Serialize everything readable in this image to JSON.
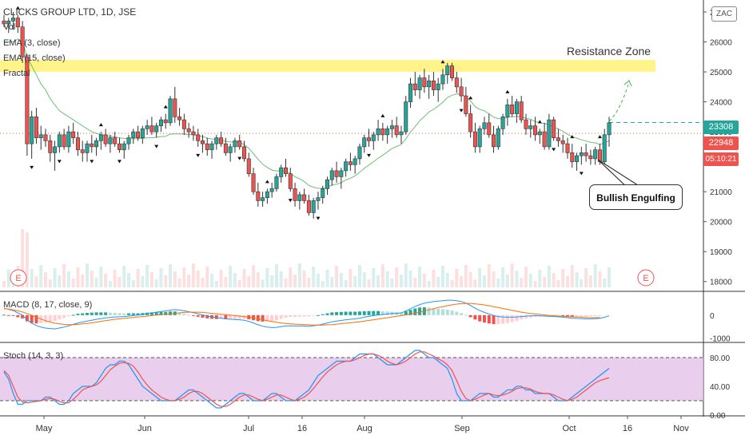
{
  "chart_data": {
    "type": "candlestick",
    "title": "CLICKS GROUP LTD, 1D, JSE",
    "timeframe": "1D",
    "exchange": "JSE",
    "currency_badge": "ZAC",
    "indicators": [
      "Vol",
      "EMA (3, close)",
      "EMA (15, close)",
      "Fractal"
    ],
    "price_axis": [
      27000,
      26000,
      25000,
      24000,
      23000,
      22000,
      21000,
      20000,
      19000,
      18000
    ],
    "price_labels": [
      "27000",
      "26000",
      "25000",
      "24000",
      "23000",
      "22000",
      "21000",
      "20000",
      "19000",
      "18000"
    ],
    "ylim": [
      17700,
      27400
    ],
    "last_price": "23308",
    "prev_close": "22948",
    "countdown": "05:10:21",
    "x_labels": [
      "May",
      "Jun",
      "Jul",
      "16",
      "Aug",
      "Sep",
      "Oct",
      "16",
      "Nov"
    ],
    "resistance_zone": {
      "label": "Resistance Zone",
      "from": 25000,
      "to": 25400
    },
    "annotation": "Bullish Engulfing",
    "earnings_marker": "E",
    "candles": [
      [
        26700,
        26900,
        26500,
        26600
      ],
      [
        26600,
        26800,
        26300,
        26700
      ],
      [
        26700,
        27000,
        26400,
        26800
      ],
      [
        26800,
        26900,
        26300,
        26500
      ],
      [
        26500,
        26700,
        25300,
        25500
      ],
      [
        25500,
        25600,
        22200,
        22600
      ],
      [
        22600,
        23700,
        22100,
        23500
      ],
      [
        23500,
        23800,
        22600,
        22800
      ],
      [
        22800,
        23200,
        22400,
        22900
      ],
      [
        22900,
        23100,
        22500,
        22700
      ],
      [
        22700,
        22900,
        22000,
        22300
      ],
      [
        22300,
        22700,
        21700,
        22500
      ],
      [
        22500,
        23000,
        22300,
        22900
      ],
      [
        22900,
        23100,
        22400,
        22500
      ],
      [
        22500,
        23200,
        22300,
        23000
      ],
      [
        23000,
        23300,
        22600,
        22800
      ],
      [
        22800,
        23000,
        22200,
        22400
      ],
      [
        22400,
        22700,
        22000,
        22300
      ],
      [
        22300,
        22700,
        22000,
        22600
      ],
      [
        22600,
        22900,
        22300,
        22500
      ],
      [
        22500,
        22800,
        22200,
        22700
      ],
      [
        22700,
        23000,
        22400,
        22900
      ],
      [
        22900,
        23100,
        22500,
        22600
      ],
      [
        22600,
        22900,
        22300,
        22800
      ],
      [
        22800,
        23000,
        22500,
        22600
      ],
      [
        22600,
        22800,
        22300,
        22400
      ],
      [
        22400,
        22700,
        22100,
        22600
      ],
      [
        22600,
        22900,
        22400,
        22800
      ],
      [
        22800,
        23100,
        22600,
        23000
      ],
      [
        23000,
        23200,
        22700,
        22800
      ],
      [
        22800,
        23200,
        22600,
        23100
      ],
      [
        23100,
        23400,
        22900,
        23200
      ],
      [
        23200,
        23500,
        22900,
        23000
      ],
      [
        23000,
        23300,
        22800,
        23200
      ],
      [
        23200,
        23500,
        23000,
        23400
      ],
      [
        23400,
        23600,
        23100,
        23300
      ],
      [
        23300,
        24200,
        23200,
        24100
      ],
      [
        24100,
        24500,
        23300,
        23500
      ],
      [
        23500,
        23800,
        23200,
        23400
      ],
      [
        23400,
        23600,
        22900,
        23100
      ],
      [
        23100,
        23300,
        22800,
        23000
      ],
      [
        23000,
        23200,
        22700,
        22900
      ],
      [
        22900,
        23100,
        22500,
        22700
      ],
      [
        22700,
        22900,
        22300,
        22600
      ],
      [
        22600,
        22800,
        22200,
        22400
      ],
      [
        22400,
        22700,
        22100,
        22600
      ],
      [
        22600,
        22900,
        22400,
        22800
      ],
      [
        22800,
        23000,
        22500,
        22600
      ],
      [
        22600,
        22800,
        22200,
        22300
      ],
      [
        22300,
        22600,
        22000,
        22500
      ],
      [
        22500,
        22800,
        22300,
        22700
      ],
      [
        22700,
        22900,
        22400,
        22500
      ],
      [
        22500,
        22700,
        22000,
        22100
      ],
      [
        22100,
        22300,
        21500,
        21600
      ],
      [
        21600,
        21800,
        20900,
        21000
      ],
      [
        21000,
        21300,
        20500,
        20700
      ],
      [
        20700,
        21000,
        20500,
        20800
      ],
      [
        20800,
        21100,
        20600,
        21000
      ],
      [
        21000,
        21300,
        20800,
        21100
      ],
      [
        21100,
        21600,
        21000,
        21500
      ],
      [
        21500,
        21900,
        21300,
        21800
      ],
      [
        21800,
        22100,
        21500,
        21600
      ],
      [
        21600,
        21800,
        21000,
        21100
      ],
      [
        21100,
        21300,
        20500,
        20700
      ],
      [
        20700,
        21000,
        20400,
        20900
      ],
      [
        20900,
        21100,
        20600,
        20700
      ],
      [
        20700,
        20900,
        20200,
        20300
      ],
      [
        20300,
        20800,
        20100,
        20700
      ],
      [
        20700,
        21000,
        20400,
        20800
      ],
      [
        20800,
        21200,
        20600,
        21100
      ],
      [
        21100,
        21500,
        20900,
        21400
      ],
      [
        21400,
        21800,
        21200,
        21700
      ],
      [
        21700,
        22000,
        21300,
        21500
      ],
      [
        21500,
        21800,
        21100,
        21700
      ],
      [
        21700,
        22100,
        21500,
        22000
      ],
      [
        22000,
        22300,
        21700,
        21900
      ],
      [
        21900,
        22200,
        21600,
        22100
      ],
      [
        22100,
        22600,
        21900,
        22500
      ],
      [
        22500,
        22900,
        22300,
        22800
      ],
      [
        22800,
        23100,
        22500,
        22700
      ],
      [
        22700,
        23000,
        22400,
        22900
      ],
      [
        22900,
        23400,
        22700,
        23100
      ],
      [
        23100,
        23300,
        22700,
        22900
      ],
      [
        22900,
        23200,
        22600,
        23100
      ],
      [
        23100,
        23400,
        22800,
        23200
      ],
      [
        23200,
        23500,
        22800,
        22900
      ],
      [
        22900,
        23200,
        22600,
        23000
      ],
      [
        23000,
        24200,
        22900,
        24000
      ],
      [
        24000,
        24800,
        23800,
        24600
      ],
      [
        24600,
        25000,
        24200,
        24400
      ],
      [
        24400,
        24900,
        24100,
        24800
      ],
      [
        24800,
        25100,
        24300,
        24500
      ],
      [
        24500,
        24900,
        24100,
        24700
      ],
      [
        24700,
        25000,
        24200,
        24400
      ],
      [
        24400,
        24800,
        24000,
        24600
      ],
      [
        24600,
        25100,
        24400,
        24900
      ],
      [
        24900,
        25300,
        24600,
        25200
      ],
      [
        25200,
        25300,
        24700,
        24800
      ],
      [
        24800,
        25000,
        24300,
        24500
      ],
      [
        24500,
        24800,
        24000,
        24200
      ],
      [
        24200,
        24500,
        23500,
        23600
      ],
      [
        23600,
        23900,
        22800,
        23000
      ],
      [
        23000,
        23300,
        22300,
        22500
      ],
      [
        22500,
        23200,
        22300,
        23100
      ],
      [
        23100,
        23500,
        22900,
        23300
      ],
      [
        23300,
        23600,
        22800,
        22900
      ],
      [
        22900,
        23200,
        22300,
        22500
      ],
      [
        22500,
        23200,
        22400,
        23100
      ],
      [
        23100,
        23600,
        22900,
        23500
      ],
      [
        23500,
        24100,
        23200,
        23900
      ],
      [
        23900,
        24200,
        23500,
        23600
      ],
      [
        23600,
        24100,
        23300,
        24000
      ],
      [
        24000,
        24200,
        23300,
        23400
      ],
      [
        23400,
        23600,
        22900,
        23100
      ],
      [
        23100,
        23400,
        22800,
        23200
      ],
      [
        23200,
        23500,
        22700,
        22900
      ],
      [
        22900,
        23100,
        22600,
        23000
      ],
      [
        23000,
        23300,
        22400,
        22500
      ],
      [
        22500,
        23600,
        22400,
        23400
      ],
      [
        23400,
        23500,
        22700,
        22800
      ],
      [
        22800,
        23100,
        22500,
        22700
      ],
      [
        22700,
        22900,
        22300,
        22600
      ],
      [
        22600,
        22800,
        22100,
        22300
      ],
      [
        22300,
        22600,
        21800,
        22000
      ],
      [
        22000,
        22300,
        21700,
        22200
      ],
      [
        22200,
        22500,
        21900,
        22300
      ],
      [
        22300,
        22600,
        22000,
        22200
      ],
      [
        22200,
        22400,
        21900,
        22100
      ],
      [
        22100,
        22500,
        21900,
        22400
      ],
      [
        22400,
        22600,
        21900,
        22000
      ],
      [
        22000,
        23100,
        21900,
        22900
      ],
      [
        22900,
        23500,
        22500,
        23300
      ]
    ],
    "ema15": [
      26000,
      26000,
      26000,
      26100,
      26000,
      25500,
      25200,
      24900,
      24600,
      24400,
      24100,
      23900,
      23700,
      23600,
      23500,
      23400,
      23300,
      23200,
      23100,
      23000,
      22950,
      22900,
      22880,
      22850,
      22830,
      22800,
      22780,
      22770,
      22770,
      22770,
      22780,
      22800,
      22800,
      22820,
      22840,
      22850,
      22920,
      22930,
      22930,
      22920,
      22910,
      22900,
      22870,
      22840,
      22790,
      22760,
      22750,
      22730,
      22680,
      22660,
      22660,
      22640,
      22570,
      22450,
      22270,
      22080,
      21920,
      21810,
      21720,
      21690,
      21700,
      21680,
      21610,
      21500,
      21430,
      21340,
      21210,
      21150,
      21110,
      21110,
      21150,
      21220,
      21250,
      21300,
      21390,
      21450,
      21530,
      21650,
      21780,
      21890,
      22000,
      22120,
      22220,
      22330,
      22440,
      22510,
      22580,
      22760,
      22990,
      23170,
      23370,
      23510,
      23660,
      23750,
      23860,
      23990,
      24140,
      24220,
      24260,
      24250,
      24170,
      24030,
      23840,
      23750,
      23700,
      23600,
      23490,
      23440,
      23430,
      23490,
      23500,
      23520,
      23500,
      23450,
      23420,
      23340,
      23300,
      23280,
      23230,
      23160,
      23090,
      23020,
      22920,
      22830,
      22790,
      22730,
      22690,
      22650,
      22630,
      22580,
      22620,
      22710
    ],
    "macd": [
      300,
      250,
      200,
      100,
      0,
      -200,
      -350,
      -450,
      -520,
      -560,
      -580,
      -600,
      -560,
      -520,
      -460,
      -400,
      -340,
      -300,
      -260,
      -220,
      -180,
      -150,
      -120,
      -100,
      -80,
      -70,
      -60,
      -40,
      -20,
      0,
      30,
      70,
      100,
      130,
      160,
      180,
      220,
      240,
      220,
      190,
      150,
      110,
      60,
      10,
      -40,
      -80,
      -110,
      -130,
      -160,
      -180,
      -190,
      -200,
      -220,
      -270,
      -340,
      -420,
      -480,
      -520,
      -540,
      -530,
      -500,
      -470,
      -460,
      -470,
      -470,
      -470,
      -480,
      -460,
      -430,
      -390,
      -340,
      -290,
      -260,
      -230,
      -200,
      -180,
      -160,
      -130,
      -90,
      -50,
      -20,
      10,
      30,
      50,
      70,
      80,
      100,
      180,
      280,
      380,
      460,
      520,
      560,
      590,
      610,
      630,
      650,
      650,
      630,
      590,
      520,
      420,
      300,
      200,
      120,
      50,
      -20,
      -60,
      -80,
      -90,
      -90,
      -80,
      -60,
      -40,
      -30,
      -20,
      -30,
      -40,
      -50,
      -60,
      -70,
      -90,
      -110,
      -130,
      -140,
      -150,
      -160,
      -160,
      -150,
      -140,
      -90,
      -30
    ],
    "macd_signal": [
      280,
      260,
      230,
      190,
      140,
      70,
      -10,
      -90,
      -170,
      -240,
      -300,
      -350,
      -380,
      -400,
      -410,
      -410,
      -400,
      -380,
      -360,
      -330,
      -300,
      -270,
      -240,
      -210,
      -180,
      -160,
      -140,
      -120,
      -100,
      -80,
      -60,
      -40,
      -20,
      0,
      20,
      40,
      60,
      80,
      100,
      120,
      130,
      130,
      130,
      120,
      100,
      80,
      60,
      40,
      20,
      0,
      -20,
      -40,
      -60,
      -90,
      -120,
      -160,
      -200,
      -240,
      -280,
      -310,
      -340,
      -360,
      -380,
      -390,
      -400,
      -410,
      -420,
      -430,
      -430,
      -430,
      -420,
      -410,
      -390,
      -370,
      -350,
      -330,
      -310,
      -290,
      -260,
      -230,
      -200,
      -170,
      -140,
      -110,
      -80,
      -50,
      -20,
      10,
      50,
      90,
      130,
      180,
      230,
      280,
      330,
      370,
      410,
      450,
      480,
      500,
      510,
      510,
      490,
      470,
      440,
      410,
      370,
      330,
      290,
      250,
      210,
      170,
      130,
      100,
      70,
      50,
      30,
      10,
      -10,
      -20,
      -40,
      -50,
      -60,
      -70,
      -80,
      -90,
      -100,
      -110,
      -110,
      -100
    ],
    "macd_axis": [
      "0",
      "-1000"
    ],
    "stoch_k": [
      60,
      50,
      30,
      15,
      15,
      20,
      20,
      20,
      20,
      25,
      25,
      20,
      15,
      15,
      20,
      30,
      35,
      40,
      40,
      40,
      45,
      55,
      65,
      70,
      70,
      75,
      75,
      70,
      60,
      50,
      40,
      35,
      30,
      25,
      20,
      20,
      20,
      20,
      25,
      30,
      35,
      35,
      30,
      25,
      20,
      15,
      10,
      10,
      15,
      20,
      25,
      30,
      30,
      25,
      20,
      20,
      20,
      25,
      30,
      30,
      25,
      20,
      20,
      20,
      25,
      30,
      35,
      45,
      55,
      60,
      65,
      70,
      75,
      75,
      75,
      75,
      80,
      85,
      85,
      85,
      85,
      80,
      75,
      70,
      70,
      70,
      75,
      80,
      85,
      90,
      90,
      85,
      80,
      80,
      75,
      70,
      65,
      50,
      30,
      20,
      20,
      20,
      25,
      30,
      30,
      30,
      25,
      25,
      30,
      35,
      35,
      40,
      40,
      35,
      35,
      30,
      30,
      30,
      30,
      25,
      20,
      20,
      20,
      25,
      30,
      35,
      40,
      45,
      50,
      55,
      60,
      65
    ],
    "stoch_d": [
      62,
      55,
      40,
      25,
      18,
      17,
      18,
      19,
      20,
      22,
      23,
      22,
      19,
      17,
      17,
      22,
      28,
      35,
      38,
      40,
      42,
      47,
      55,
      63,
      68,
      72,
      73,
      72,
      68,
      60,
      50,
      42,
      35,
      30,
      25,
      22,
      20,
      20,
      22,
      25,
      30,
      33,
      33,
      30,
      25,
      20,
      15,
      12,
      12,
      15,
      20,
      25,
      28,
      28,
      25,
      22,
      20,
      22,
      25,
      28,
      28,
      25,
      22,
      20,
      22,
      25,
      30,
      37,
      45,
      53,
      60,
      65,
      70,
      73,
      75,
      75,
      77,
      80,
      83,
      85,
      85,
      83,
      80,
      75,
      72,
      70,
      72,
      75,
      80,
      85,
      88,
      88,
      85,
      82,
      78,
      75,
      70,
      62,
      48,
      33,
      23,
      20,
      22,
      25,
      28,
      30,
      28,
      27,
      28,
      30,
      33,
      37,
      38,
      38,
      36,
      33,
      31,
      30,
      30,
      28,
      25,
      22,
      20,
      22,
      25,
      30,
      35,
      40,
      45,
      48,
      50,
      52
    ],
    "stoch_axis": [
      "80.00",
      "40.00",
      "0.00"
    ]
  }
}
